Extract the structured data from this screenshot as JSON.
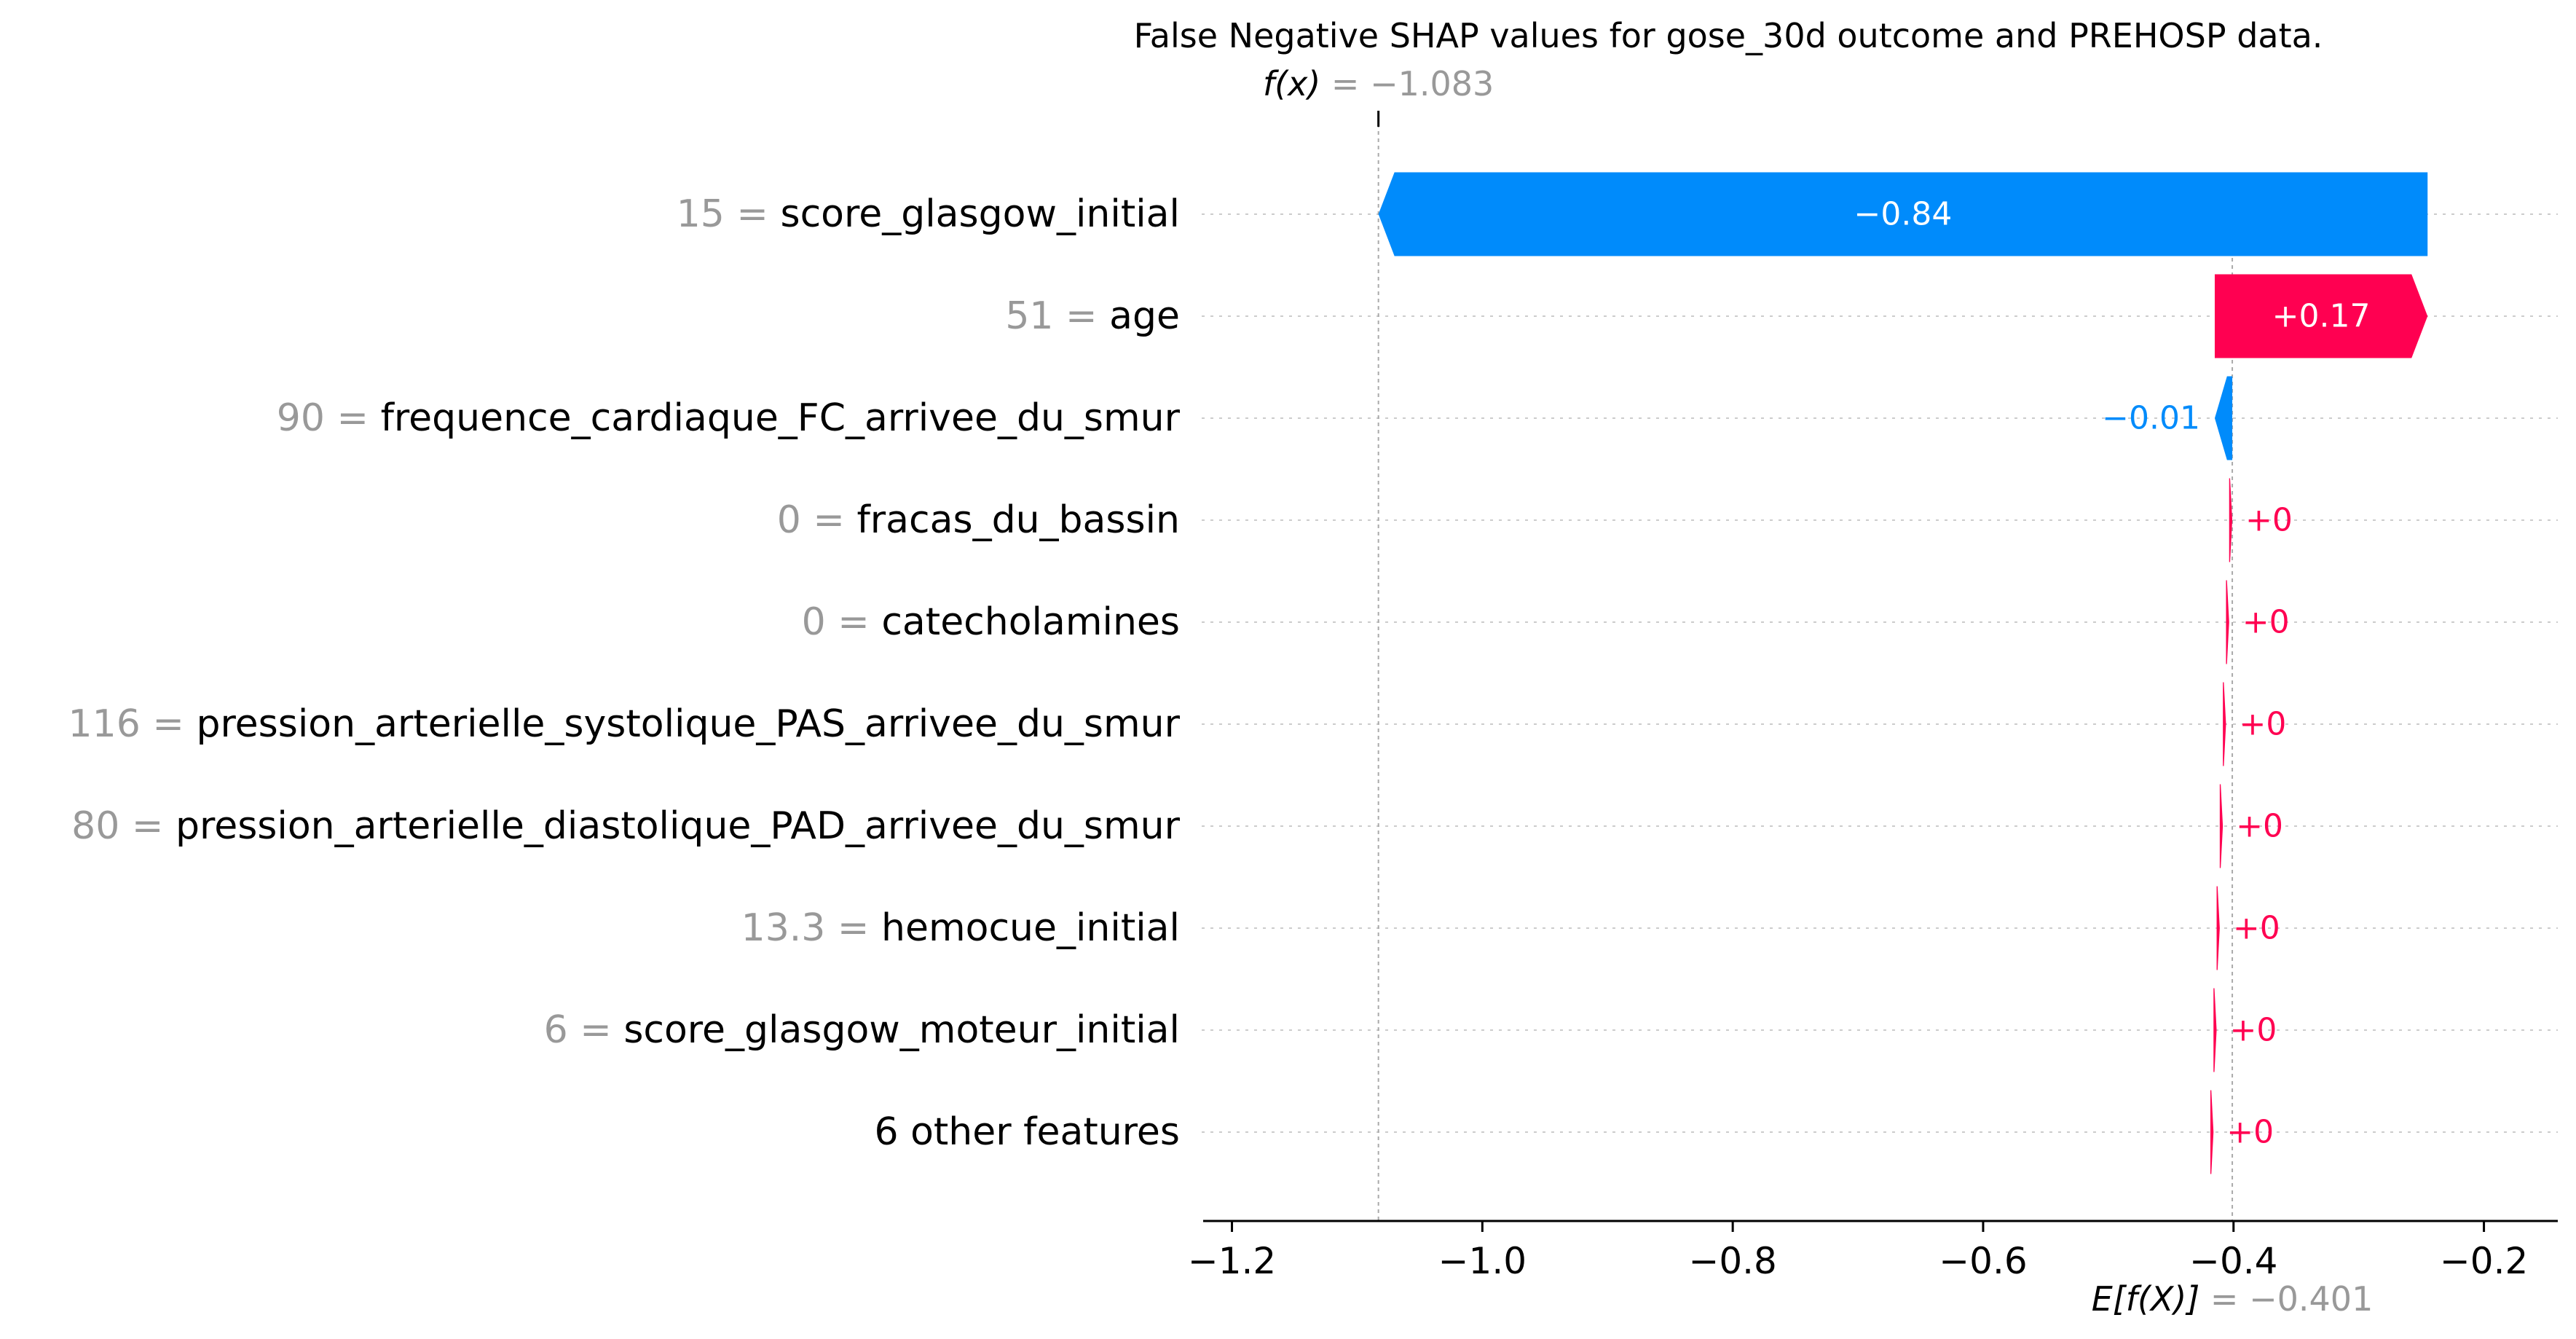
{
  "chart_data": {
    "type": "waterfall",
    "title": "False Negative SHAP values for gose_30d outcome and PREHOSP data.",
    "fx": {
      "label": "f(x)",
      "value_text": "= −1.083",
      "value": -1.083
    },
    "base": {
      "label": "E[f(X)]",
      "value_text": "= −0.401",
      "value": -0.401
    },
    "xlim": [
      -1.223,
      -0.141
    ],
    "xticks": [
      -1.2,
      -1.0,
      -0.8,
      -0.6,
      -0.4,
      -0.2
    ],
    "xtick_labels": [
      "−1.2",
      "−1.0",
      "−0.8",
      "−0.6",
      "−0.4",
      "−0.2"
    ],
    "features": [
      {
        "value": "15",
        "eq": "=",
        "name": "score_glasgow_initial",
        "shap": -0.838,
        "label": "−0.84"
      },
      {
        "value": "51",
        "eq": "=",
        "name": "age",
        "shap": 0.17,
        "label": "+0.17"
      },
      {
        "value": "90",
        "eq": "=",
        "name": "frequence_cardiaque_FC_arrivee_du_smur",
        "shap": -0.014,
        "label": "−0.01"
      },
      {
        "value": "0",
        "eq": "=",
        "name": "fracas_du_bassin",
        "shap": 0.0025,
        "label": "+0"
      },
      {
        "value": "0",
        "eq": "=",
        "name": "catecholamines",
        "shap": 0.0025,
        "label": "+0"
      },
      {
        "value": "116",
        "eq": "=",
        "name": "pression_arterielle_systolique_PAS_arrivee_du_smur",
        "shap": 0.0025,
        "label": "+0"
      },
      {
        "value": "80",
        "eq": "=",
        "name": "pression_arterielle_diastolique_PAD_arrivee_du_smur",
        "shap": 0.0025,
        "label": "+0"
      },
      {
        "value": "13.3",
        "eq": "=",
        "name": "hemocue_initial",
        "shap": 0.0025,
        "label": "+0"
      },
      {
        "value": "6",
        "eq": "=",
        "name": "score_glasgow_moteur_initial",
        "shap": 0.0025,
        "label": "+0"
      },
      {
        "value": "",
        "eq": "",
        "name": "6 other features",
        "shap": 0.0025,
        "label": "+0"
      }
    ],
    "colors": {
      "positive": "#ff0051",
      "negative": "#008bfb",
      "value_gray": "#999999",
      "text": "#000000",
      "grid": "#cccccc"
    }
  }
}
